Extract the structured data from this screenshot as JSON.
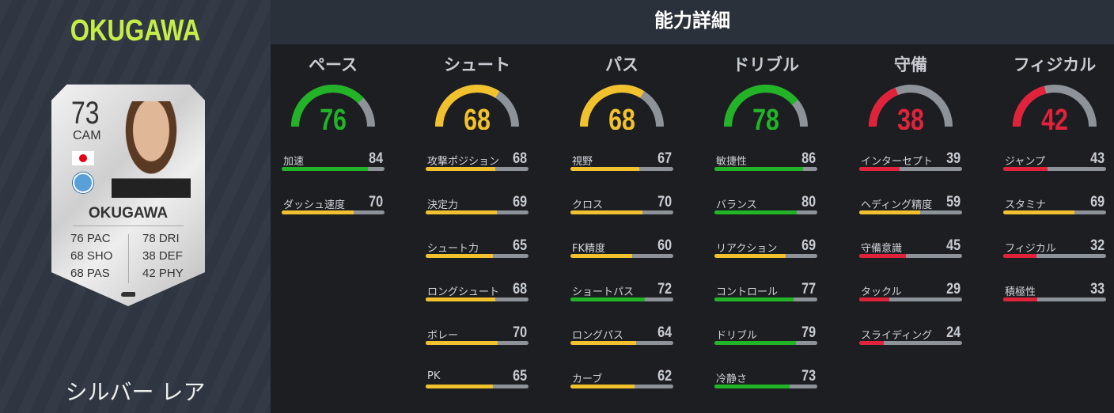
{
  "player": {
    "name": "OKUGAWA",
    "rating": "73",
    "position": "CAM",
    "nation": "Japan",
    "club_icon": "club-crest-icon",
    "rarity": "シルバー レア",
    "card_stats_left": [
      "76 PAC",
      "68 SHO",
      "68 PAS"
    ],
    "card_stats_right": [
      "78 DRI",
      "38 DEF",
      "42 PHY"
    ]
  },
  "header": {
    "title": "能力詳細"
  },
  "colors": {
    "green": "#22b327",
    "yellow": "#f2c12e",
    "red": "#e0233b",
    "track": "#8e939a",
    "name": "#c6ee48"
  },
  "categories": [
    {
      "title": "ペース",
      "value": 76,
      "stats": [
        {
          "label": "加速",
          "value": 84
        },
        {
          "label": "ダッシュ速度",
          "value": 70
        }
      ]
    },
    {
      "title": "シュート",
      "value": 68,
      "stats": [
        {
          "label": "攻撃ポジション",
          "value": 68
        },
        {
          "label": "決定力",
          "value": 69
        },
        {
          "label": "シュート力",
          "value": 65
        },
        {
          "label": "ロングシュート",
          "value": 68
        },
        {
          "label": "ボレー",
          "value": 70
        },
        {
          "label": "PK",
          "value": 65
        }
      ]
    },
    {
      "title": "パス",
      "value": 68,
      "stats": [
        {
          "label": "視野",
          "value": 67
        },
        {
          "label": "クロス",
          "value": 70
        },
        {
          "label": "FK精度",
          "value": 60
        },
        {
          "label": "ショートパス",
          "value": 72
        },
        {
          "label": "ロングパス",
          "value": 64
        },
        {
          "label": "カーブ",
          "value": 62
        }
      ]
    },
    {
      "title": "ドリブル",
      "value": 78,
      "stats": [
        {
          "label": "敏捷性",
          "value": 86
        },
        {
          "label": "バランス",
          "value": 80
        },
        {
          "label": "リアクション",
          "value": 69
        },
        {
          "label": "コントロール",
          "value": 77
        },
        {
          "label": "ドリブル",
          "value": 79
        },
        {
          "label": "冷静さ",
          "value": 73
        }
      ]
    },
    {
      "title": "守備",
      "value": 38,
      "stats": [
        {
          "label": "インターセプト",
          "value": 39
        },
        {
          "label": "ヘディング精度",
          "value": 59
        },
        {
          "label": "守備意識",
          "value": 45
        },
        {
          "label": "タックル",
          "value": 29
        },
        {
          "label": "スライディング",
          "value": 24
        }
      ]
    },
    {
      "title": "フィジカル",
      "value": 42,
      "stats": [
        {
          "label": "ジャンプ",
          "value": 43
        },
        {
          "label": "スタミナ",
          "value": 69
        },
        {
          "label": "フィジカル",
          "value": 32
        },
        {
          "label": "積極性",
          "value": 33
        }
      ]
    }
  ]
}
